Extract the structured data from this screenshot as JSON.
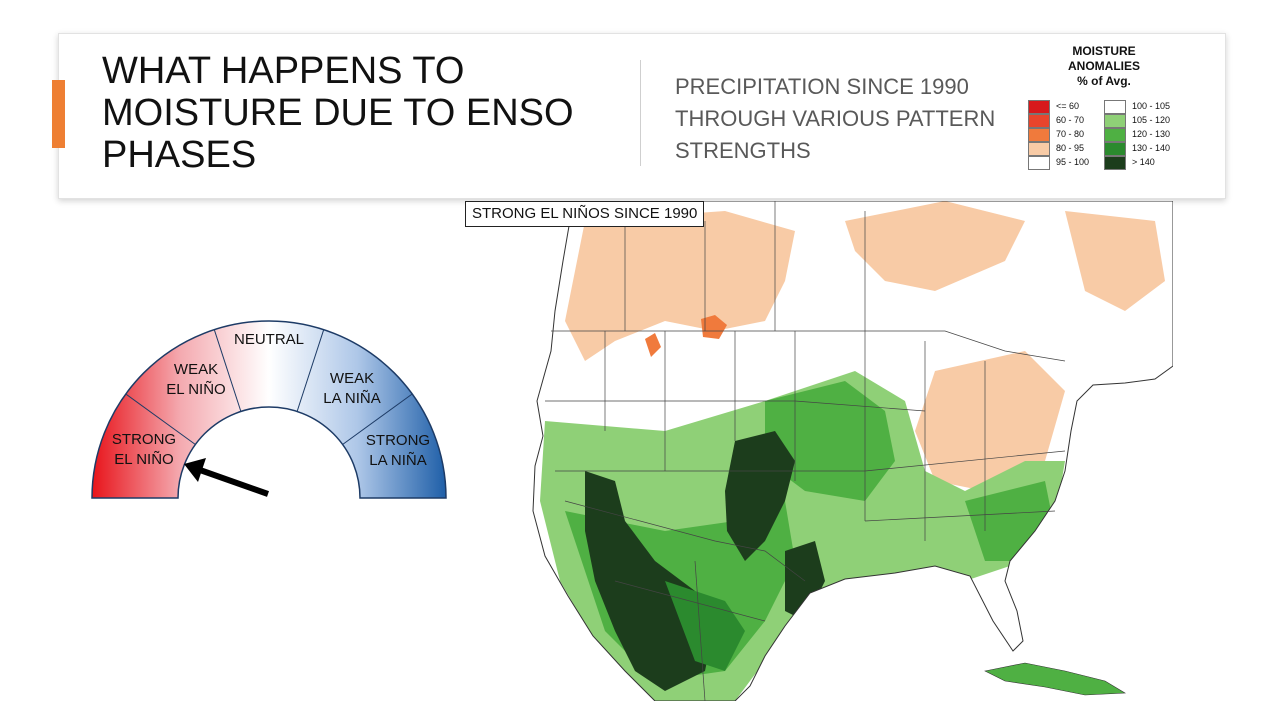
{
  "slide": {
    "title": "WHAT HAPPENS TO MOISTURE DUE TO ENSO PHASES",
    "subtitle": "PRECIPITATION SINCE 1990 THROUGH VARIOUS PATTERN STRENGTHS",
    "accent_color": "#ee7f33"
  },
  "legend": {
    "title_line1": "MOISTURE",
    "title_line2": "ANOMALIES",
    "title_line3": "% of Avg.",
    "items": [
      {
        "label": "<= 60",
        "color": "#d7191c"
      },
      {
        "label": "60 - 70",
        "color": "#e8452c"
      },
      {
        "label": "70 - 80",
        "color": "#f07a3c"
      },
      {
        "label": "80 - 95",
        "color": "#f8cba6"
      },
      {
        "label": "95 - 100",
        "color": "#ffffff"
      },
      {
        "label": "100 - 105",
        "color": "#ffffff"
      },
      {
        "label": "105 - 120",
        "color": "#8fd077"
      },
      {
        "label": "120 - 130",
        "color": "#4fb043"
      },
      {
        "label": "130 - 140",
        "color": "#2b8a2e"
      },
      {
        "label": "> 140",
        "color": "#1c3d1c"
      }
    ]
  },
  "map": {
    "label": "STRONG EL NIÑOS SINCE 1990"
  },
  "gauge": {
    "segments": [
      {
        "line1": "STRONG",
        "line2": "EL NIÑO"
      },
      {
        "line1": "WEAK",
        "line2": "EL NIÑO"
      },
      {
        "line1": "NEUTRAL",
        "line2": ""
      },
      {
        "line1": "WEAK",
        "line2": "LA NIÑA"
      },
      {
        "line1": "STRONG",
        "line2": "LA NIÑA"
      }
    ],
    "selected": "STRONG EL NIÑO",
    "el_nino_color": "#e8141b",
    "la_nina_color": "#1f5fa8"
  }
}
